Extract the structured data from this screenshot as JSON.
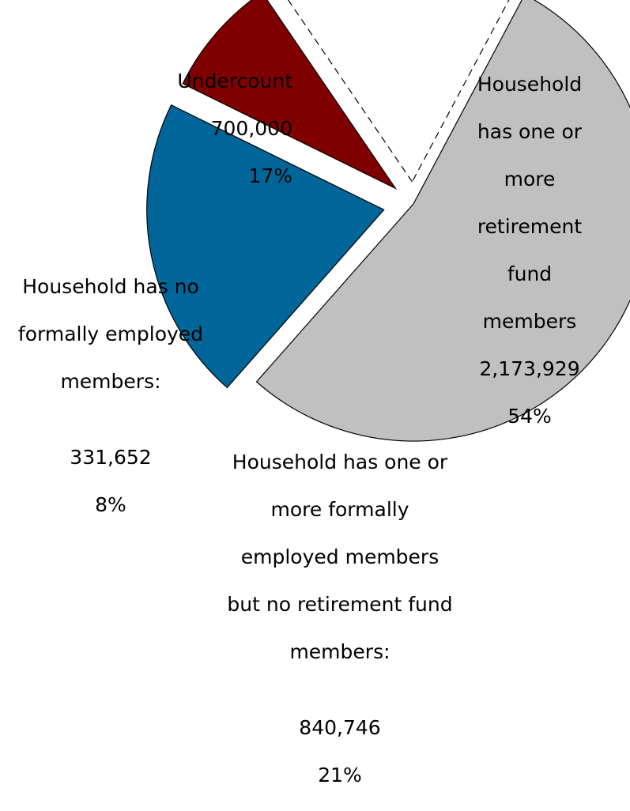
{
  "chart_data": {
    "type": "pie",
    "exploded": true,
    "slices": [
      {
        "label": "Household has one or more retirement fund members",
        "value": 2173929,
        "value_label": "2,173,929",
        "percent_label": "54%",
        "color": "#c0c0c0",
        "dashed": false
      },
      {
        "label": "Household has one or more formally employed members but no retirement fund members:",
        "value": 840746,
        "value_label": "840,746",
        "percent_label": "21%",
        "color": "#006699",
        "dashed": false
      },
      {
        "label": "Household has no formally employed members:",
        "value": 331652,
        "value_label": "331,652",
        "percent_label": "8%",
        "color": "#800000",
        "dashed": false
      },
      {
        "label": "Undercount",
        "value": 700000,
        "value_label": "700,000",
        "percent_label": "17%",
        "color": "#ffffff",
        "dashed": true
      }
    ]
  },
  "labels": {
    "retirement": {
      "lines": [
        "Household",
        "has one or",
        "more",
        "retirement",
        "fund",
        "members"
      ],
      "value": "2,173,929",
      "percent": "54%"
    },
    "undercount": {
      "lines": [
        "Undercount"
      ],
      "value": "700,000",
      "percent": "17%"
    },
    "none": {
      "lines": [
        "Household has no",
        "formally employed",
        "members:"
      ],
      "value": "331,652",
      "percent": "8%"
    },
    "formal": {
      "lines": [
        "Household has one or",
        "more formally",
        "employed members",
        "but no retirement fund",
        "members:"
      ],
      "value": "840,746",
      "percent": "21%"
    }
  }
}
